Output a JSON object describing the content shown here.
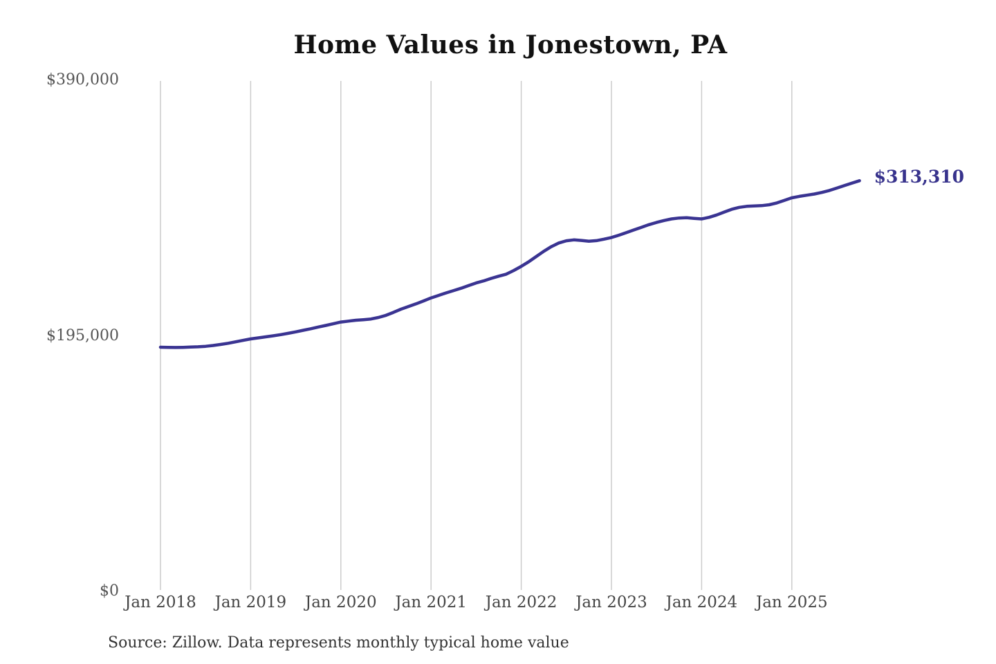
{
  "chart_data": {
    "type": "line",
    "title": "Home Values in Jonestown, PA",
    "xlabel": "",
    "ylabel": "",
    "ylim": [
      0,
      390000
    ],
    "y_ticks": [
      0,
      195000,
      390000
    ],
    "y_tick_labels": [
      "$0",
      "$195,000",
      "$390,000"
    ],
    "x_tick_labels": [
      "Jan 2018",
      "Jan 2019",
      "Jan 2020",
      "Jan 2021",
      "Jan 2022",
      "Jan 2023",
      "Jan 2024",
      "Jan 2025"
    ],
    "grid": "vertical-only",
    "legend": "none",
    "series": [
      {
        "name": "Monthly typical home value",
        "x_start": "2018-01",
        "x_interval": "monthly",
        "values": [
          186300,
          186200,
          186100,
          186200,
          186400,
          186600,
          187000,
          187600,
          188400,
          189300,
          190400,
          191500,
          192600,
          193400,
          194200,
          195000,
          195900,
          196900,
          198000,
          199200,
          200400,
          201700,
          202900,
          204200,
          205500,
          206200,
          206900,
          207300,
          207800,
          209000,
          210600,
          212900,
          215300,
          217400,
          219400,
          221600,
          223900,
          225800,
          227700,
          229500,
          231300,
          233300,
          235300,
          236900,
          238800,
          240500,
          242000,
          244800,
          248000,
          251500,
          255500,
          259500,
          263000,
          265800,
          267500,
          268200,
          267800,
          267200,
          267600,
          268700,
          270000,
          271800,
          273800,
          275800,
          277800,
          279800,
          281500,
          283000,
          284200,
          284900,
          285100,
          284600,
          284200,
          285400,
          287200,
          289400,
          291500,
          293000,
          293800,
          294100,
          294300,
          295000,
          296400,
          298300,
          300300,
          301400,
          302300,
          303200,
          304400,
          305900,
          307700,
          309600,
          311500,
          313310
        ]
      }
    ],
    "end_annotation": {
      "text": "$313,310",
      "value": 313310
    },
    "source_note": "Source: Zillow. Data represents monthly typical home value",
    "colors": {
      "line": "#3a3492",
      "annotation": "#37328c",
      "grid": "#cccccc",
      "y_label": "#555555",
      "x_label": "#454545",
      "title": "#111111",
      "source": "#333333"
    }
  }
}
